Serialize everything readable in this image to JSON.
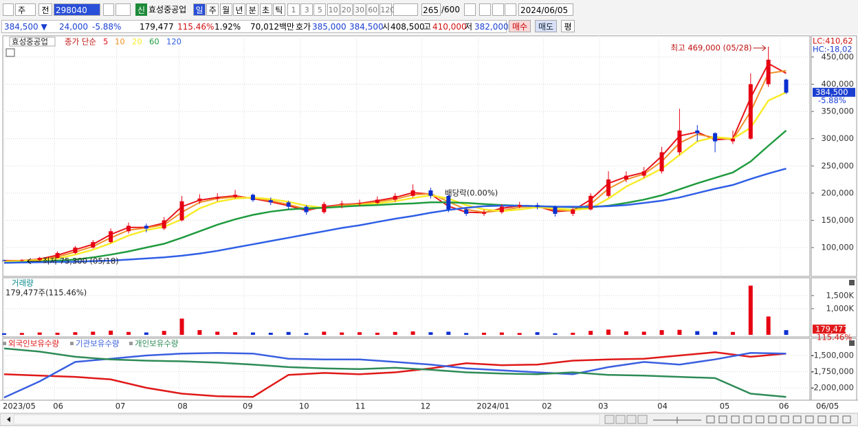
{
  "toolbar": {
    "market": "주",
    "prev": "전",
    "code": "298040",
    "badge": "신",
    "name": "효성중공업",
    "periods": [
      "일",
      "주",
      "월",
      "년",
      "분",
      "초",
      "틱"
    ],
    "intervals": [
      "1",
      "3",
      "5",
      "10",
      "20",
      "30",
      "60",
      "120"
    ],
    "count": "265",
    "max_count": "/600",
    "date": "2024/06/05"
  },
  "info_bar": {
    "price": "384,500 ▼",
    "change": "24,000",
    "change_pct": "-5.88%",
    "volume": "179,477",
    "volume_ratio": "115.46%",
    "turnover": "1.92%",
    "amount": "70,012백만",
    "ask_label": "호가",
    "ask": "385,000",
    "bid": "384,500",
    "open_label": "시",
    "open": "408,500",
    "high_label": "고",
    "high": "410,000",
    "low_label": "저",
    "low": "382,000",
    "buy": "매수",
    "sell": "매도",
    "avg": "평"
  },
  "chart_data": [
    {
      "type": "candlestick",
      "title": "효성중공업",
      "legend_label": "종가 단순",
      "up_color": "#e60012",
      "down_color": "#0a2fd0",
      "x": [
        0,
        6,
        12,
        18,
        24,
        30,
        36,
        42,
        48,
        54,
        60,
        66,
        72,
        78,
        84,
        90,
        96,
        102,
        108,
        114,
        120,
        126,
        132,
        138,
        144,
        150,
        156,
        162,
        168,
        174,
        180,
        186,
        192,
        198,
        204,
        210,
        216,
        222,
        228,
        234,
        240,
        246,
        252,
        258,
        264
      ],
      "open": [
        76500,
        76000,
        77000,
        81000,
        90000,
        100000,
        110000,
        130000,
        140000,
        135000,
        150000,
        185000,
        190000,
        193000,
        197000,
        187000,
        183000,
        175000,
        165000,
        180000,
        181000,
        182000,
        188000,
        195000,
        205000,
        195000,
        170000,
        162000,
        165000,
        175000,
        178000,
        175000,
        162000,
        170000,
        195000,
        225000,
        232000,
        240000,
        275000,
        315000,
        310000,
        295000,
        300000,
        400000,
        408500
      ],
      "high": [
        78000,
        79000,
        83000,
        93000,
        103000,
        114000,
        135000,
        146000,
        144000,
        156000,
        195000,
        198000,
        200000,
        206000,
        199000,
        192000,
        186000,
        178000,
        184000,
        186000,
        188000,
        194000,
        200000,
        216000,
        210000,
        197000,
        174000,
        170000,
        180000,
        184000,
        182000,
        177000,
        174000,
        200000,
        240000,
        240000,
        248000,
        285000,
        355000,
        325000,
        312000,
        315000,
        420000,
        469000,
        410000
      ],
      "low": [
        75300,
        75000,
        76000,
        80000,
        88000,
        98000,
        108000,
        126000,
        128000,
        132000,
        148000,
        180000,
        185000,
        190000,
        184000,
        178000,
        170000,
        160000,
        162000,
        172000,
        176000,
        180000,
        184000,
        192000,
        190000,
        165000,
        158000,
        158000,
        162000,
        172000,
        170000,
        157000,
        158000,
        168000,
        192000,
        220000,
        228000,
        236000,
        270000,
        295000,
        275000,
        290000,
        298000,
        395000,
        382000
      ],
      "close": [
        76000,
        77000,
        81000,
        90000,
        100000,
        110000,
        130000,
        140000,
        135000,
        150000,
        185000,
        190000,
        193000,
        197000,
        187000,
        183000,
        175000,
        165000,
        180000,
        181000,
        182000,
        188000,
        195000,
        205000,
        195000,
        170000,
        162000,
        165000,
        175000,
        178000,
        175000,
        162000,
        170000,
        195000,
        225000,
        232000,
        240000,
        275000,
        315000,
        310000,
        295000,
        300000,
        400000,
        445000,
        384500
      ],
      "series": [
        {
          "name": "5",
          "color": "#e8151b",
          "values": [
            76000,
            76000,
            79000,
            86000,
            96000,
            106000,
            124000,
            137000,
            137000,
            145000,
            175000,
            187000,
            192000,
            195000,
            190000,
            184000,
            177000,
            168000,
            175000,
            179000,
            181000,
            186000,
            192000,
            201000,
            198000,
            176000,
            165000,
            164000,
            172000,
            177000,
            176000,
            166000,
            168000,
            188000,
            218000,
            230000,
            238000,
            268000,
            305000,
            312000,
            298000,
            300000,
            375000,
            438000,
            420000
          ]
        },
        {
          "name": "10",
          "color": "#f0902a",
          "values": [
            75000,
            76000,
            78000,
            83000,
            92000,
            102000,
            118000,
            132000,
            136000,
            142000,
            165000,
            183000,
            190000,
            193000,
            191000,
            186000,
            179000,
            171000,
            173000,
            178000,
            180000,
            184000,
            189000,
            197000,
            199000,
            184000,
            170000,
            165000,
            168000,
            174000,
            176000,
            169000,
            167000,
            180000,
            208000,
            225000,
            235000,
            258000,
            292000,
            308000,
            302000,
            298000,
            350000,
            420000,
            425000
          ]
        },
        {
          "name": "20",
          "color": "#f8ec2a",
          "values": [
            74000,
            75000,
            77000,
            80000,
            87000,
            96000,
            108000,
            122000,
            132000,
            138000,
            152000,
            172000,
            184000,
            190000,
            192000,
            189000,
            184000,
            177000,
            173000,
            175000,
            178000,
            181000,
            185000,
            191000,
            196000,
            190000,
            178000,
            170000,
            167000,
            170000,
            174000,
            172000,
            169000,
            172000,
            190000,
            212000,
            228000,
            245000,
            270000,
            295000,
            303000,
            300000,
            320000,
            370000,
            385000
          ]
        },
        {
          "name": "60",
          "color": "#1f9b3f",
          "values": [
            72000,
            73000,
            74000,
            76000,
            78000,
            82000,
            87000,
            93000,
            100000,
            107000,
            118000,
            130000,
            142000,
            152000,
            160000,
            166000,
            170000,
            172000,
            173000,
            175000,
            177000,
            178000,
            180000,
            181000,
            183000,
            183000,
            182000,
            180000,
            178000,
            177000,
            176000,
            175000,
            174000,
            174000,
            177000,
            182000,
            188000,
            196000,
            207000,
            218000,
            228000,
            238000,
            258000,
            287000,
            315000
          ]
        },
        {
          "name": "120",
          "color": "#2f5fe6",
          "values": [
            72000,
            72500,
            73000,
            73500,
            74000,
            75000,
            76000,
            78000,
            80000,
            82000,
            85000,
            89000,
            94000,
            100000,
            106000,
            112000,
            118000,
            124000,
            130000,
            136000,
            141000,
            147000,
            153000,
            158000,
            164000,
            169000,
            173000,
            176000,
            177000,
            177000,
            176000,
            175000,
            175000,
            175000,
            176000,
            178000,
            182000,
            186000,
            192000,
            200000,
            208000,
            215000,
            226000,
            236000,
            245000
          ]
        }
      ],
      "xlim": [
        0,
        272
      ],
      "ylim": [
        47000,
        489000
      ],
      "yticks": [
        {
          "value": 100000,
          "label": "100,000"
        },
        {
          "value": 150000,
          "label": "150,000"
        },
        {
          "value": 200000,
          "label": "200,000"
        },
        {
          "value": 250000,
          "label": "250,000"
        },
        {
          "value": 300000,
          "label": "300,000"
        },
        {
          "value": 350000,
          "label": "350,000"
        },
        {
          "value": 400000,
          "label": "400,000"
        },
        {
          "value": 450000,
          "label": "450,000"
        }
      ],
      "grid": true,
      "high_label": "최고 469,000 (05/28)",
      "low_label": "최저 75,300 (05/18)",
      "event_label": "배당락(0.00%)",
      "lc_label": "LC:410,62",
      "hc_label": "HC:-18,02",
      "last_label": "384,500",
      "last_change": "-5.88%"
    },
    {
      "type": "bar",
      "title": "거래량",
      "subtitle": "179,477주(115.46%)",
      "x": [
        0,
        6,
        12,
        18,
        24,
        30,
        36,
        42,
        48,
        54,
        60,
        66,
        72,
        78,
        84,
        90,
        96,
        102,
        108,
        114,
        120,
        126,
        132,
        138,
        144,
        150,
        156,
        162,
        168,
        174,
        180,
        186,
        192,
        198,
        204,
        210,
        216,
        222,
        228,
        234,
        240,
        246,
        252,
        258,
        264
      ],
      "values": [
        60000,
        70000,
        90000,
        80000,
        100000,
        120000,
        160000,
        110000,
        90000,
        150000,
        620000,
        180000,
        120000,
        100000,
        90000,
        80000,
        110000,
        70000,
        120000,
        90000,
        100000,
        80000,
        110000,
        130000,
        100000,
        120000,
        70000,
        80000,
        90000,
        70000,
        100000,
        60000,
        80000,
        150000,
        200000,
        130000,
        120000,
        180000,
        190000,
        140000,
        120000,
        110000,
        1880000,
        700000,
        179477
      ],
      "xlim": [
        0,
        272
      ],
      "ylim": [
        -80000,
        2180000
      ],
      "yticks": [
        {
          "value": 1000000,
          "label": "1,000K"
        },
        {
          "value": 1500000,
          "label": "1,500K"
        }
      ],
      "last_label": "179,477",
      "last_ratio": "115.46%"
    },
    {
      "type": "line",
      "x": [
        0,
        12,
        24,
        36,
        48,
        60,
        72,
        84,
        96,
        108,
        120,
        132,
        144,
        156,
        168,
        180,
        192,
        204,
        216,
        228,
        240,
        252,
        264
      ],
      "series": [
        {
          "name": "외국인보유수량",
          "color": "#e01818",
          "values": [
            -1790000,
            -1810000,
            -1830000,
            -1870000,
            -2000000,
            -2090000,
            -2130000,
            -2140000,
            -1800000,
            -1770000,
            -1790000,
            -1760000,
            -1700000,
            -1620000,
            -1650000,
            -1640000,
            -1580000,
            -1560000,
            -1550000,
            -1500000,
            -1450000,
            -1520000,
            -1470000
          ]
        },
        {
          "name": "기관보유수량",
          "color": "#3a5fe0",
          "values": [
            -2150000,
            -1900000,
            -1600000,
            -1550000,
            -1500000,
            -1470000,
            -1460000,
            -1470000,
            -1550000,
            -1560000,
            -1560000,
            -1600000,
            -1640000,
            -1700000,
            -1730000,
            -1760000,
            -1790000,
            -1680000,
            -1600000,
            -1640000,
            -1560000,
            -1460000,
            -1470000
          ]
        },
        {
          "name": "개인보유수량",
          "color": "#2e8b57",
          "values": [
            -1390000,
            -1440000,
            -1520000,
            -1560000,
            -1580000,
            -1590000,
            -1610000,
            -1640000,
            -1680000,
            -1700000,
            -1710000,
            -1690000,
            -1720000,
            -1760000,
            -1780000,
            -1790000,
            -1760000,
            -1800000,
            -1810000,
            -1830000,
            -1850000,
            -2090000,
            -2140000
          ]
        }
      ],
      "xlim": [
        0,
        272
      ],
      "ylim": [
        -2191000,
        -1234000
      ],
      "yticks": [
        {
          "value": -1500000,
          "label": "-1,500,000"
        },
        {
          "value": -1750000,
          "label": "-1,750,000"
        },
        {
          "value": -2000000,
          "label": "-2,000,000"
        }
      ],
      "xticks": [
        {
          "value": 0,
          "label": "2023/05"
        },
        {
          "value": 17,
          "label": "06"
        },
        {
          "value": 38,
          "label": "07"
        },
        {
          "value": 59,
          "label": "08"
        },
        {
          "value": 81,
          "label": "09"
        },
        {
          "value": 100,
          "label": "10"
        },
        {
          "value": 119,
          "label": "11"
        },
        {
          "value": 141,
          "label": "12"
        },
        {
          "value": 160,
          "label": "2024/01"
        },
        {
          "value": 182,
          "label": "02"
        },
        {
          "value": 201,
          "label": "03"
        },
        {
          "value": 221,
          "label": "04"
        },
        {
          "value": 242,
          "label": "05"
        },
        {
          "value": 262,
          "label": "06"
        }
      ],
      "cursor_date": "06/05"
    }
  ]
}
